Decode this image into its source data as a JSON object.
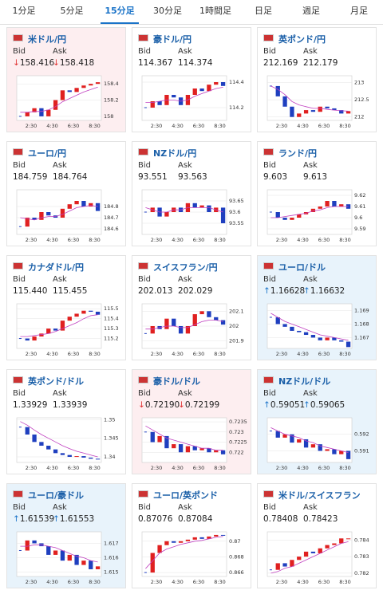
{
  "tabs": [
    "1分足",
    "5分足",
    "15分足",
    "30分足",
    "1時間足",
    "日足",
    "週足",
    "月足"
  ],
  "active_tab": 2,
  "bid_label": "Bid",
  "ask_label": "Ask",
  "x_labels": [
    "2:30",
    "4:30",
    "6:30",
    "8:30"
  ],
  "panels": [
    {
      "title": "米ドル/円",
      "arrow": "↓",
      "arrow_color": "#e03030",
      "background": "#fdeef0",
      "bid": "158.416",
      "ask": "158.418",
      "ylim": [
        157.95,
        158.5
      ],
      "yticks": [
        158.4,
        158.2,
        158
      ],
      "close": [
        158.0,
        158.05,
        158.1,
        158.0,
        158.08,
        158.2,
        158.32,
        158.3,
        158.35,
        158.38,
        158.4,
        158.42
      ],
      "ma": [
        158.05,
        158.05,
        158.06,
        158.06,
        158.08,
        158.12,
        158.18,
        158.22,
        158.26,
        158.3,
        158.33,
        158.36
      ]
    },
    {
      "title": "豪ドル/円",
      "bid": "114.367",
      "ask": "114.374",
      "ylim": [
        114.1,
        114.45
      ],
      "yticks": [
        114.4,
        114.2
      ],
      "close": [
        114.2,
        114.25,
        114.22,
        114.3,
        114.28,
        114.22,
        114.3,
        114.35,
        114.33,
        114.38,
        114.4,
        114.37
      ],
      "ma": [
        114.24,
        114.24,
        114.25,
        114.26,
        114.26,
        114.25,
        114.26,
        114.29,
        114.31,
        114.33,
        114.35,
        114.36
      ]
    },
    {
      "title": "英ポンド/円",
      "bid": "212.169",
      "ask": "212.179",
      "ylim": [
        211.9,
        213.2
      ],
      "yticks": [
        213,
        212.5,
        212
      ],
      "close": [
        212.9,
        212.6,
        212.3,
        212.0,
        212.1,
        212.2,
        212.15,
        212.3,
        212.25,
        212.2,
        212.1,
        212.17
      ],
      "ma": [
        212.9,
        212.8,
        212.65,
        212.45,
        212.35,
        212.3,
        212.25,
        212.25,
        212.22,
        212.2,
        212.18,
        212.17
      ]
    },
    {
      "title": "ユーロ/円",
      "bid": "184.759",
      "ask": "184.764",
      "ylim": [
        184.55,
        184.95
      ],
      "yticks": [
        184.8,
        184.7,
        184.6
      ],
      "close": [
        184.62,
        184.7,
        184.68,
        184.75,
        184.72,
        184.7,
        184.78,
        184.82,
        184.85,
        184.8,
        184.83,
        184.76
      ],
      "ma": [
        184.7,
        184.69,
        184.68,
        184.7,
        184.71,
        184.71,
        184.73,
        184.76,
        184.79,
        184.8,
        184.81,
        184.8
      ]
    },
    {
      "title": "NZドル/円",
      "bid": "93.551",
      "ask": "93.563",
      "ylim": [
        93.5,
        93.7
      ],
      "yticks": [
        93.65,
        93.6,
        93.55
      ],
      "close": [
        93.6,
        93.62,
        93.58,
        93.6,
        93.62,
        93.6,
        93.64,
        93.62,
        93.63,
        93.6,
        93.62,
        93.55
      ],
      "ma": [
        93.62,
        93.61,
        93.6,
        93.6,
        93.61,
        93.61,
        93.62,
        93.62,
        93.62,
        93.62,
        93.61,
        93.6
      ]
    },
    {
      "title": "ランド/円",
      "bid": "9.603",
      "ask": "9.613",
      "ylim": [
        9.585,
        9.625
      ],
      "yticks": [
        9.62,
        9.61,
        9.6,
        9.59
      ],
      "close": [
        9.605,
        9.6,
        9.598,
        9.6,
        9.603,
        9.605,
        9.608,
        9.61,
        9.615,
        9.61,
        9.612,
        9.608
      ],
      "ma": [
        9.6,
        9.6,
        9.601,
        9.602,
        9.603,
        9.604,
        9.606,
        9.607,
        9.609,
        9.61,
        9.61,
        9.61
      ]
    },
    {
      "title": "カナダドル/円",
      "bid": "115.440",
      "ask": "115.455",
      "ylim": [
        115.1,
        115.55
      ],
      "yticks": [
        115.5,
        115.4,
        115.3,
        115.2
      ],
      "close": [
        115.2,
        115.18,
        115.22,
        115.25,
        115.3,
        115.28,
        115.38,
        115.42,
        115.45,
        115.48,
        115.47,
        115.44
      ],
      "ma": [
        115.22,
        115.22,
        115.23,
        115.24,
        115.25,
        115.27,
        115.3,
        115.33,
        115.36,
        115.4,
        115.43,
        115.44
      ]
    },
    {
      "title": "スイスフラン/円",
      "bid": "202.013",
      "ask": "202.029",
      "ylim": [
        201.85,
        202.15
      ],
      "yticks": [
        202.1,
        202,
        201.9
      ],
      "close": [
        201.95,
        202.0,
        201.98,
        202.05,
        202.0,
        201.95,
        202.0,
        202.08,
        202.1,
        202.06,
        202.04,
        202.01
      ],
      "ma": [
        201.98,
        201.98,
        201.99,
        202.0,
        202.0,
        201.99,
        201.99,
        202.01,
        202.03,
        202.04,
        202.04,
        202.03
      ]
    },
    {
      "title": "ユーロ/ドル",
      "arrow": "↑",
      "arrow_color": "#1a73c8",
      "background": "#e8f3fb",
      "bid": "1.16628",
      "ask": "1.16632",
      "ylim": [
        1.1662,
        1.1695
      ],
      "yticks": [
        1.169,
        1.168,
        1.167
      ],
      "close": [
        1.1685,
        1.168,
        1.1678,
        1.1675,
        1.1674,
        1.1672,
        1.167,
        1.1668,
        1.167,
        1.1668,
        1.1667,
        1.1663
      ],
      "ma": [
        1.1688,
        1.1685,
        1.1682,
        1.168,
        1.1678,
        1.1676,
        1.1674,
        1.1672,
        1.1671,
        1.167,
        1.1669,
        1.1668
      ]
    },
    {
      "title": "英ポンド/ドル",
      "bid": "1.33929",
      "ask": "1.33939",
      "ylim": [
        1.3385,
        1.3505
      ],
      "yticks": [
        1.35,
        1.345,
        1.34
      ],
      "close": [
        1.348,
        1.346,
        1.344,
        1.343,
        1.342,
        1.341,
        1.3405,
        1.34,
        1.3402,
        1.3398,
        1.3395,
        1.3393
      ],
      "ma": [
        1.3495,
        1.3485,
        1.3472,
        1.346,
        1.345,
        1.344,
        1.343,
        1.3422,
        1.3415,
        1.341,
        1.3405,
        1.34
      ]
    },
    {
      "title": "豪ドル/ドル",
      "arrow": "↓",
      "arrow_color": "#e03030",
      "background": "#fdeef0",
      "bid": "0.72190",
      "ask": "0.72199",
      "ylim": [
        0.7215,
        0.7237
      ],
      "yticks": [
        0.7235,
        0.723,
        0.7225,
        0.722
      ],
      "close": [
        0.723,
        0.7225,
        0.7228,
        0.7222,
        0.7224,
        0.722,
        0.7223,
        0.7221,
        0.7222,
        0.722,
        0.7221,
        0.7219
      ],
      "ma": [
        0.7233,
        0.7231,
        0.7229,
        0.7227,
        0.7226,
        0.7225,
        0.7224,
        0.7223,
        0.7222,
        0.7222,
        0.7221,
        0.7221
      ]
    },
    {
      "title": "NZドル/ドル",
      "arrow": "↑",
      "arrow_color": "#1a73c8",
      "background": "#e8f3fb",
      "bid": "0.59051",
      "ask": "0.59065",
      "ylim": [
        0.5903,
        0.593
      ],
      "yticks": [
        0.592,
        0.591
      ],
      "close": [
        0.5922,
        0.5918,
        0.592,
        0.5915,
        0.5917,
        0.5912,
        0.5914,
        0.591,
        0.5911,
        0.5908,
        0.591,
        0.5905
      ],
      "ma": [
        0.5924,
        0.5922,
        0.592,
        0.5919,
        0.5918,
        0.5916,
        0.5915,
        0.5913,
        0.5912,
        0.5911,
        0.591,
        0.5909
      ]
    },
    {
      "title": "ユーロ/豪ドル",
      "arrow": "↑",
      "arrow_color": "#1a73c8",
      "background": "#e8f3fb",
      "bid": "1.61539",
      "ask": "1.61553",
      "ylim": [
        1.6147,
        1.6178
      ],
      "yticks": [
        1.617,
        1.616,
        1.615
      ],
      "close": [
        1.6165,
        1.6172,
        1.617,
        1.6168,
        1.6162,
        1.6165,
        1.6158,
        1.6162,
        1.6155,
        1.6158,
        1.6152,
        1.6154
      ],
      "ma": [
        1.6168,
        1.6168,
        1.6169,
        1.6169,
        1.6168,
        1.6167,
        1.6165,
        1.6163,
        1.6161,
        1.616,
        1.6158,
        1.6157
      ]
    },
    {
      "title": "ユーロ/英ポンド",
      "bid": "0.87076",
      "ask": "0.87084",
      "ylim": [
        0.8655,
        0.8712
      ],
      "yticks": [
        0.87,
        0.868,
        0.866
      ],
      "close": [
        0.866,
        0.8685,
        0.8695,
        0.87,
        0.8698,
        0.87,
        0.8702,
        0.8705,
        0.8703,
        0.8706,
        0.8708,
        0.8707
      ],
      "ma": [
        0.8665,
        0.8675,
        0.8685,
        0.869,
        0.8693,
        0.8696,
        0.8698,
        0.87,
        0.8701,
        0.8703,
        0.8705,
        0.8706
      ]
    },
    {
      "title": "米ドル/スイスフラン",
      "bid": "0.78408",
      "ask": "0.78423",
      "ylim": [
        0.7818,
        0.7845
      ],
      "yticks": [
        0.784,
        0.783,
        0.782
      ],
      "close": [
        0.7822,
        0.7826,
        0.7824,
        0.7828,
        0.783,
        0.7833,
        0.7832,
        0.7835,
        0.7837,
        0.7838,
        0.7841,
        0.7841
      ],
      "ma": [
        0.782,
        0.7821,
        0.7823,
        0.7824,
        0.7826,
        0.7828,
        0.783,
        0.7832,
        0.7834,
        0.7836,
        0.7838,
        0.7839
      ]
    }
  ]
}
